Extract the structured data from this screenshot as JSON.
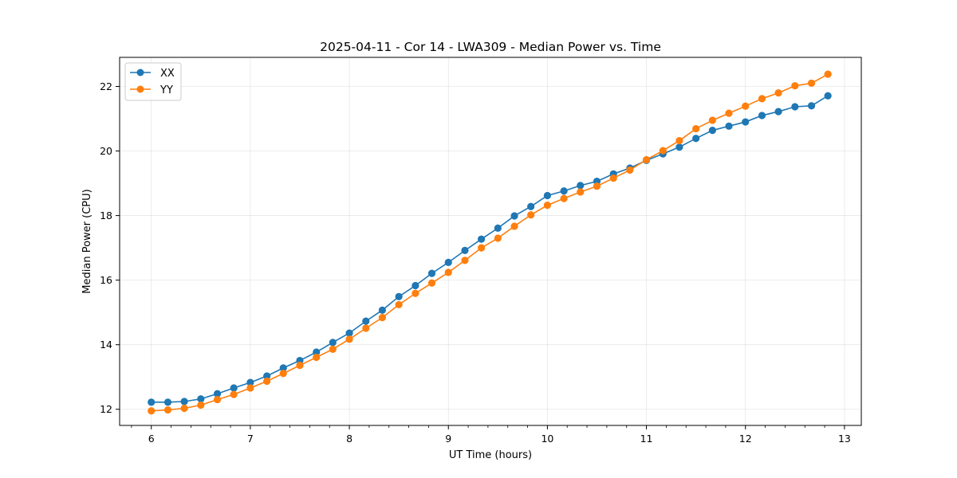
{
  "chart_data": {
    "type": "line",
    "title": "2025-04-11 - Cor 14 - LWA309 - Median Power vs. Time",
    "xlabel": "UT Time (hours)",
    "ylabel": "Median Power (CPU)",
    "xlim": [
      5.68,
      13.17
    ],
    "ylim": [
      11.5,
      22.9
    ],
    "xticks": [
      6,
      7,
      8,
      9,
      10,
      11,
      12,
      13
    ],
    "yticks": [
      12,
      14,
      16,
      18,
      20,
      22
    ],
    "grid": true,
    "legend_position": "top-left",
    "x": [
      6.0,
      6.167,
      6.333,
      6.5,
      6.667,
      6.833,
      7.0,
      7.167,
      7.333,
      7.5,
      7.667,
      7.833,
      8.0,
      8.167,
      8.333,
      8.5,
      8.667,
      8.833,
      9.0,
      9.167,
      9.333,
      9.5,
      9.667,
      9.833,
      10.0,
      10.167,
      10.333,
      10.5,
      10.667,
      10.833,
      11.0,
      11.167,
      11.333,
      11.5,
      11.667,
      11.833,
      12.0,
      12.167,
      12.333,
      12.5,
      12.667,
      12.833
    ],
    "series": [
      {
        "name": "XX",
        "color": "#1f77b4",
        "values": [
          12.22,
          12.22,
          12.24,
          12.32,
          12.48,
          12.66,
          12.83,
          13.03,
          13.28,
          13.51,
          13.77,
          14.07,
          14.36,
          14.73,
          15.07,
          15.49,
          15.83,
          16.21,
          16.55,
          16.92,
          17.27,
          17.61,
          17.99,
          18.28,
          18.62,
          18.76,
          18.93,
          19.06,
          19.29,
          19.47,
          19.71,
          19.91,
          20.12,
          20.39,
          20.64,
          20.77,
          20.9,
          21.1,
          21.22,
          21.37,
          21.4,
          21.71
        ]
      },
      {
        "name": "YY",
        "color": "#ff7f0e",
        "values": [
          11.95,
          11.98,
          12.03,
          12.13,
          12.3,
          12.46,
          12.66,
          12.87,
          13.11,
          13.36,
          13.61,
          13.86,
          14.17,
          14.51,
          14.84,
          15.24,
          15.59,
          15.91,
          16.24,
          16.61,
          17.0,
          17.3,
          17.67,
          18.02,
          18.32,
          18.53,
          18.73,
          18.91,
          19.16,
          19.41,
          19.73,
          20.01,
          20.32,
          20.69,
          20.95,
          21.17,
          21.39,
          21.62,
          21.8,
          22.02,
          22.1,
          22.38
        ]
      }
    ]
  }
}
